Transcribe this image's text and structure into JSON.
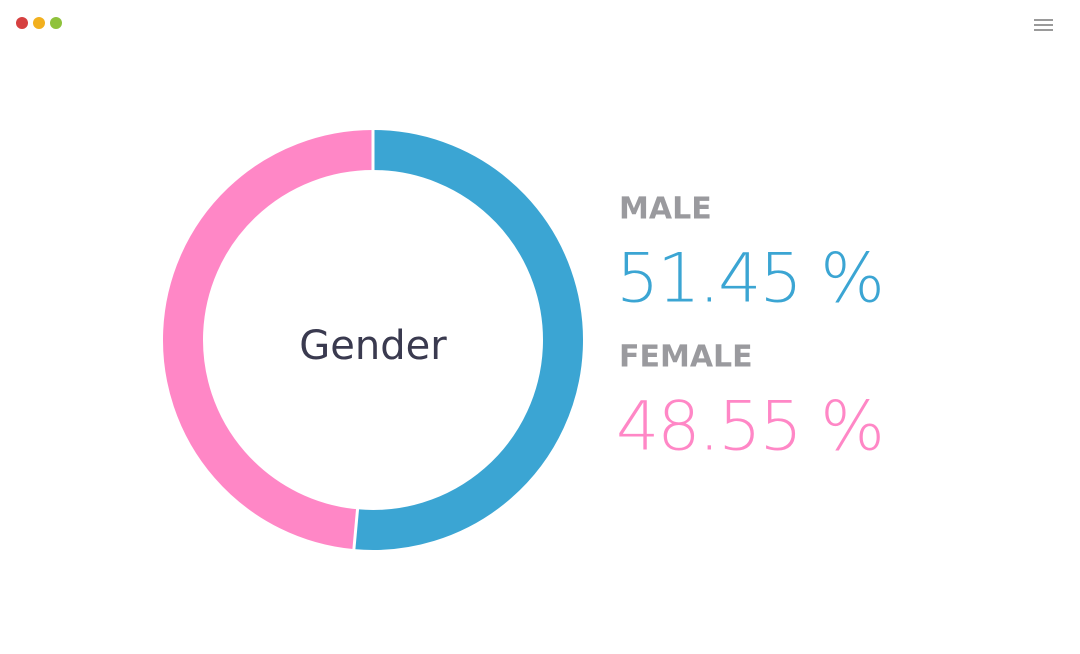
{
  "chart_data": {
    "type": "pie",
    "title": "Gender",
    "categories": [
      "MALE",
      "FEMALE"
    ],
    "values": [
      51.45,
      48.55
    ],
    "value_labels": [
      "51.45 %",
      "48.55 %"
    ],
    "colors": [
      "#3ba5d3",
      "#ff87c6"
    ]
  }
}
